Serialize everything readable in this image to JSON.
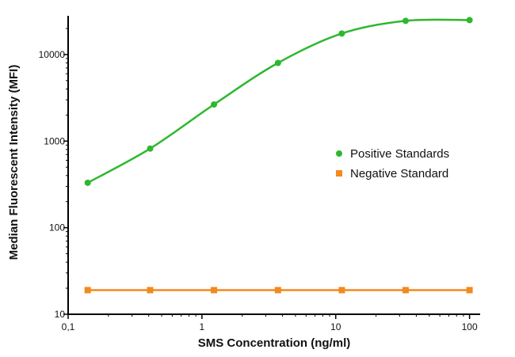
{
  "chart_data": {
    "type": "line",
    "title": "",
    "xlabel": "SMS Concentration (ng/ml)",
    "ylabel": "Median Fluorescent Intensity (MFI)",
    "xscale": "log",
    "yscale": "log",
    "xlim": [
      0.1,
      120
    ],
    "ylim": [
      10,
      28000
    ],
    "x_ticks": [
      {
        "value": 0.1,
        "label": "0,1"
      },
      {
        "value": 1,
        "label": "1"
      },
      {
        "value": 10,
        "label": "10"
      },
      {
        "value": 100,
        "label": "100"
      }
    ],
    "y_ticks": [
      {
        "value": 10,
        "label": "10"
      },
      {
        "value": 100,
        "label": "100"
      },
      {
        "value": 1000,
        "label": "1000"
      },
      {
        "value": 10000,
        "label": "10000"
      }
    ],
    "grid": false,
    "legend": {
      "placement": "right-center"
    },
    "series": [
      {
        "name": "Positive Standards",
        "color": "#2db82d",
        "marker": "circle",
        "x": [
          0.14,
          0.41,
          1.23,
          3.7,
          11.1,
          33.3,
          100
        ],
        "y": [
          330,
          820,
          2650,
          8000,
          17500,
          24500,
          25000
        ]
      },
      {
        "name": "Negative Standard",
        "color": "#f28a1e",
        "marker": "square",
        "x": [
          0.14,
          0.41,
          1.23,
          3.7,
          11.1,
          33.3,
          100
        ],
        "y": [
          19,
          19,
          19,
          19,
          19,
          19,
          19
        ]
      }
    ]
  }
}
